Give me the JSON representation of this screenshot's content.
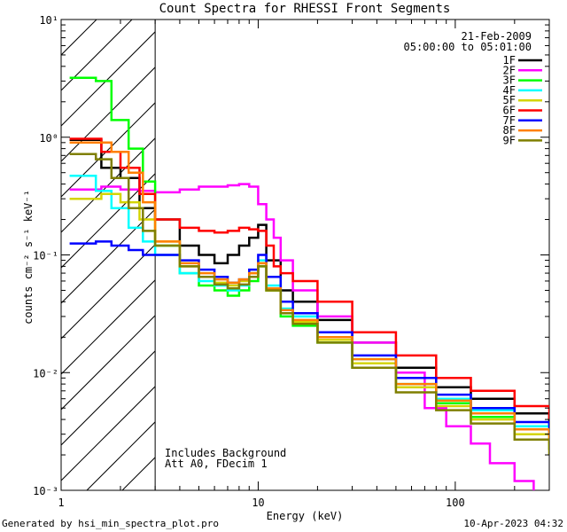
{
  "chart_data": {
    "type": "line",
    "title": "Count Spectra for RHESSI Front Segments",
    "xlabel": "Energy (keV)",
    "ylabel": "counts cm⁻² s⁻¹ keV⁻¹",
    "xscale": "log",
    "yscale": "log",
    "xlim": [
      1,
      300
    ],
    "ylim": [
      0.001,
      10
    ],
    "x_ticks": [
      {
        "value": 1,
        "label": "1"
      },
      {
        "value": 10,
        "label": "10"
      },
      {
        "value": 100,
        "label": "100"
      }
    ],
    "y_ticks": [
      {
        "value": 0.001,
        "label": "10⁻³"
      },
      {
        "value": 0.01,
        "label": "10⁻²"
      },
      {
        "value": 0.1,
        "label": "10⁻¹"
      },
      {
        "value": 1,
        "label": "10⁰"
      },
      {
        "value": 10,
        "label": "10¹"
      }
    ],
    "hatch_region": {
      "x_from": 1,
      "x_to": 3
    },
    "date": "21-Feb-2009",
    "time_range": "05:00:00 to 05:01:00",
    "annotations": [
      "Includes Background",
      "Att A0, FDecim 1"
    ],
    "footer_left": "Generated by hsi_min_spectra_plot.pro",
    "footer_right": "10-Apr-2023 04:32",
    "series": [
      {
        "name": "1F",
        "color": "#000000",
        "points": [
          [
            1.2,
            0.95
          ],
          [
            1.6,
            0.55
          ],
          [
            2.0,
            0.45
          ],
          [
            2.5,
            0.25
          ],
          [
            3,
            0.2
          ],
          [
            4,
            0.12
          ],
          [
            5,
            0.1
          ],
          [
            6,
            0.085
          ],
          [
            7,
            0.1
          ],
          [
            8,
            0.12
          ],
          [
            9,
            0.14
          ],
          [
            10,
            0.18
          ],
          [
            11,
            0.09
          ],
          [
            13,
            0.05
          ],
          [
            15,
            0.04
          ],
          [
            20,
            0.028
          ],
          [
            30,
            0.018
          ],
          [
            50,
            0.011
          ],
          [
            80,
            0.0075
          ],
          [
            120,
            0.006
          ],
          [
            200,
            0.0045
          ],
          [
            300,
            0.0035
          ]
        ]
      },
      {
        "name": "2F",
        "color": "#ff00ff",
        "points": [
          [
            1.2,
            0.36
          ],
          [
            1.6,
            0.38
          ],
          [
            2.0,
            0.36
          ],
          [
            2.5,
            0.35
          ],
          [
            3,
            0.34
          ],
          [
            4,
            0.36
          ],
          [
            5,
            0.38
          ],
          [
            6,
            0.38
          ],
          [
            7,
            0.39
          ],
          [
            8,
            0.4
          ],
          [
            9,
            0.38
          ],
          [
            10,
            0.27
          ],
          [
            11,
            0.2
          ],
          [
            12,
            0.14
          ],
          [
            13,
            0.09
          ],
          [
            15,
            0.05
          ],
          [
            20,
            0.03
          ],
          [
            30,
            0.018
          ],
          [
            50,
            0.01
          ],
          [
            70,
            0.005
          ],
          [
            90,
            0.0035
          ],
          [
            120,
            0.0025
          ],
          [
            150,
            0.0017
          ],
          [
            200,
            0.0012
          ],
          [
            250,
            0.001
          ]
        ]
      },
      {
        "name": "3F",
        "color": "#00ff00",
        "points": [
          [
            1.2,
            3.2
          ],
          [
            1.5,
            3.0
          ],
          [
            1.8,
            1.4
          ],
          [
            2.2,
            0.8
          ],
          [
            2.6,
            0.42
          ],
          [
            3,
            0.12
          ],
          [
            4,
            0.07
          ],
          [
            5,
            0.055
          ],
          [
            6,
            0.05
          ],
          [
            7,
            0.045
          ],
          [
            8,
            0.05
          ],
          [
            9,
            0.06
          ],
          [
            10,
            0.08
          ],
          [
            11,
            0.05
          ],
          [
            13,
            0.03
          ],
          [
            15,
            0.025
          ],
          [
            20,
            0.018
          ],
          [
            30,
            0.011
          ],
          [
            50,
            0.0075
          ],
          [
            80,
            0.0055
          ],
          [
            120,
            0.0042
          ],
          [
            200,
            0.003
          ],
          [
            300,
            0.0022
          ]
        ]
      },
      {
        "name": "4F",
        "color": "#00ffff",
        "points": [
          [
            1.2,
            0.47
          ],
          [
            1.5,
            0.35
          ],
          [
            1.8,
            0.25
          ],
          [
            2.2,
            0.17
          ],
          [
            2.6,
            0.13
          ],
          [
            3,
            0.1
          ],
          [
            4,
            0.07
          ],
          [
            5,
            0.06
          ],
          [
            6,
            0.055
          ],
          [
            7,
            0.05
          ],
          [
            8,
            0.055
          ],
          [
            9,
            0.07
          ],
          [
            10,
            0.09
          ],
          [
            11,
            0.055
          ],
          [
            13,
            0.035
          ],
          [
            15,
            0.03
          ],
          [
            20,
            0.02
          ],
          [
            30,
            0.013
          ],
          [
            50,
            0.008
          ],
          [
            80,
            0.006
          ],
          [
            120,
            0.0048
          ],
          [
            200,
            0.0035
          ],
          [
            300,
            0.0027
          ]
        ]
      },
      {
        "name": "5F",
        "color": "#d4d400",
        "points": [
          [
            1.2,
            0.3
          ],
          [
            1.6,
            0.33
          ],
          [
            2.0,
            0.28
          ],
          [
            2.5,
            0.2
          ],
          [
            3,
            0.13
          ],
          [
            4,
            0.08
          ],
          [
            5,
            0.065
          ],
          [
            6,
            0.058
          ],
          [
            7,
            0.055
          ],
          [
            8,
            0.06
          ],
          [
            9,
            0.07
          ],
          [
            10,
            0.085
          ],
          [
            11,
            0.05
          ],
          [
            13,
            0.032
          ],
          [
            15,
            0.027
          ],
          [
            20,
            0.019
          ],
          [
            30,
            0.012
          ],
          [
            50,
            0.0075
          ],
          [
            80,
            0.0052
          ],
          [
            120,
            0.004
          ],
          [
            200,
            0.003
          ],
          [
            300,
            0.0022
          ]
        ]
      },
      {
        "name": "6F",
        "color": "#ff0000",
        "points": [
          [
            1.2,
            0.97
          ],
          [
            1.6,
            0.75
          ],
          [
            2.0,
            0.55
          ],
          [
            2.5,
            0.33
          ],
          [
            3,
            0.2
          ],
          [
            4,
            0.17
          ],
          [
            5,
            0.16
          ],
          [
            6,
            0.155
          ],
          [
            7,
            0.16
          ],
          [
            8,
            0.17
          ],
          [
            9,
            0.165
          ],
          [
            10,
            0.16
          ],
          [
            11,
            0.12
          ],
          [
            12,
            0.08
          ],
          [
            13,
            0.07
          ],
          [
            15,
            0.06
          ],
          [
            20,
            0.04
          ],
          [
            30,
            0.022
          ],
          [
            50,
            0.014
          ],
          [
            80,
            0.009
          ],
          [
            120,
            0.007
          ],
          [
            200,
            0.0052
          ],
          [
            300,
            0.004
          ]
        ]
      },
      {
        "name": "7F",
        "color": "#0000ff",
        "points": [
          [
            1.2,
            0.125
          ],
          [
            1.5,
            0.13
          ],
          [
            1.8,
            0.12
          ],
          [
            2.2,
            0.11
          ],
          [
            2.6,
            0.1
          ],
          [
            3,
            0.1
          ],
          [
            4,
            0.09
          ],
          [
            5,
            0.075
          ],
          [
            6,
            0.065
          ],
          [
            7,
            0.058
          ],
          [
            8,
            0.062
          ],
          [
            9,
            0.075
          ],
          [
            10,
            0.1
          ],
          [
            11,
            0.065
          ],
          [
            13,
            0.04
          ],
          [
            15,
            0.032
          ],
          [
            20,
            0.022
          ],
          [
            30,
            0.014
          ],
          [
            50,
            0.009
          ],
          [
            80,
            0.0065
          ],
          [
            120,
            0.005
          ],
          [
            200,
            0.0038
          ],
          [
            300,
            0.0029
          ]
        ]
      },
      {
        "name": "8F",
        "color": "#ff7f00",
        "points": [
          [
            1.2,
            0.9
          ],
          [
            1.5,
            0.9
          ],
          [
            1.8,
            0.75
          ],
          [
            2.2,
            0.5
          ],
          [
            2.6,
            0.28
          ],
          [
            3,
            0.13
          ],
          [
            4,
            0.085
          ],
          [
            5,
            0.07
          ],
          [
            6,
            0.062
          ],
          [
            7,
            0.058
          ],
          [
            8,
            0.062
          ],
          [
            9,
            0.07
          ],
          [
            10,
            0.085
          ],
          [
            11,
            0.052
          ],
          [
            13,
            0.034
          ],
          [
            15,
            0.028
          ],
          [
            20,
            0.02
          ],
          [
            30,
            0.013
          ],
          [
            50,
            0.008
          ],
          [
            80,
            0.0058
          ],
          [
            120,
            0.0045
          ],
          [
            200,
            0.0033
          ],
          [
            300,
            0.0025
          ]
        ]
      },
      {
        "name": "9F",
        "color": "#7f7f00",
        "points": [
          [
            1.2,
            0.72
          ],
          [
            1.5,
            0.65
          ],
          [
            1.8,
            0.45
          ],
          [
            2.2,
            0.25
          ],
          [
            2.6,
            0.16
          ],
          [
            3,
            0.12
          ],
          [
            4,
            0.08
          ],
          [
            5,
            0.065
          ],
          [
            6,
            0.056
          ],
          [
            7,
            0.052
          ],
          [
            8,
            0.056
          ],
          [
            9,
            0.065
          ],
          [
            10,
            0.08
          ],
          [
            11,
            0.05
          ],
          [
            13,
            0.032
          ],
          [
            15,
            0.026
          ],
          [
            20,
            0.018
          ],
          [
            30,
            0.011
          ],
          [
            50,
            0.0068
          ],
          [
            80,
            0.0048
          ],
          [
            120,
            0.0037
          ],
          [
            200,
            0.0027
          ],
          [
            300,
            0.002
          ]
        ]
      }
    ]
  }
}
